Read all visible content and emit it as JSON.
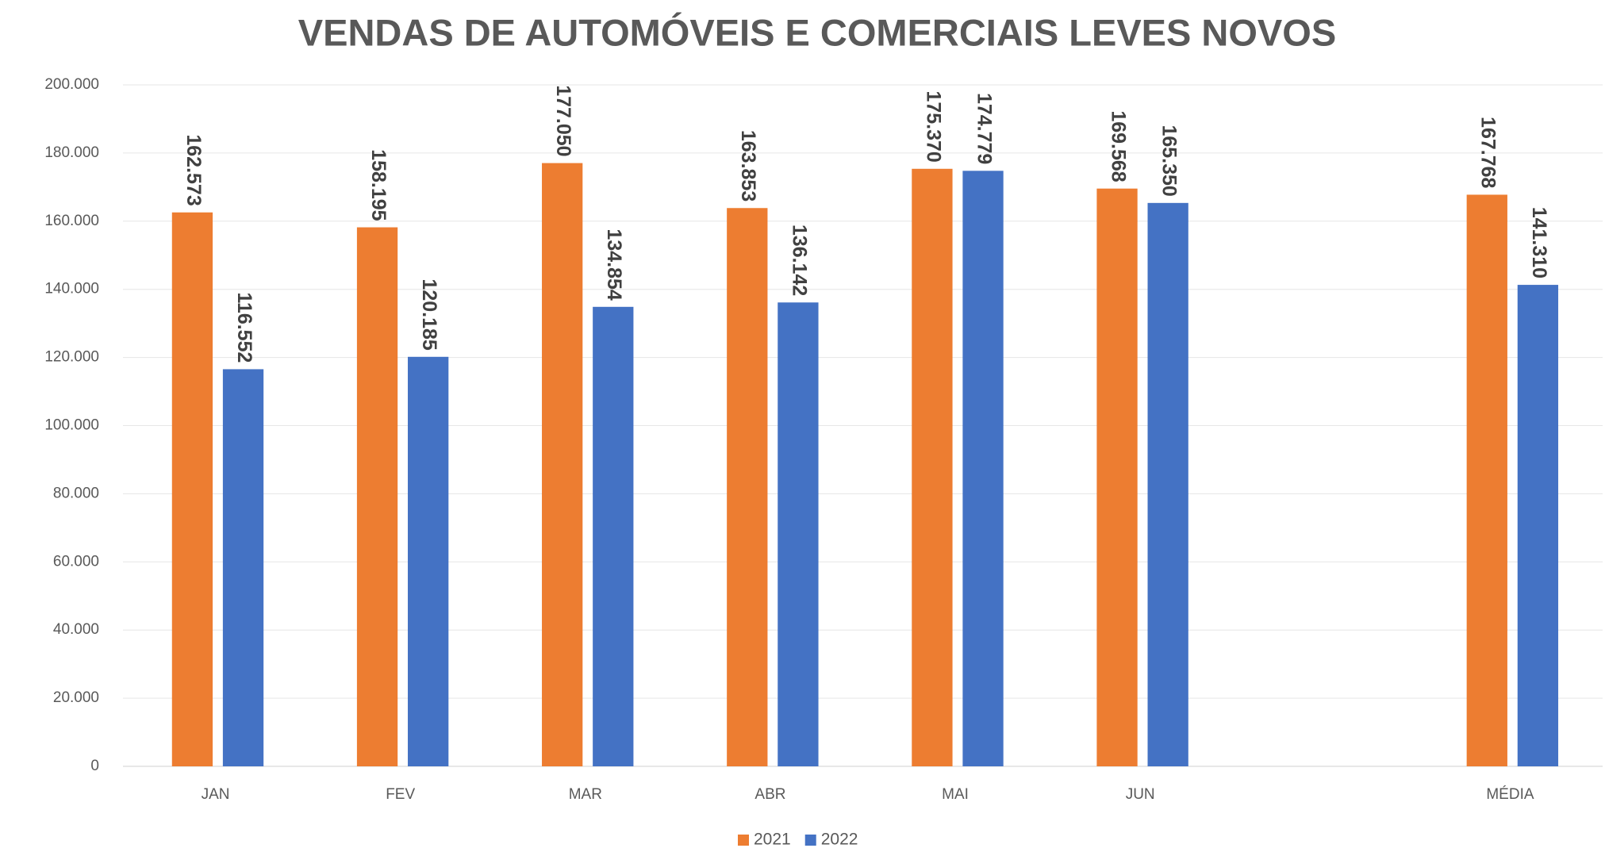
{
  "chart_data": {
    "type": "bar",
    "title": "VENDAS DE AUTOMÓVEIS E COMERCIAIS LEVES NOVOS",
    "categories": [
      "JAN",
      "FEV",
      "MAR",
      "ABR",
      "MAI",
      "JUN",
      null,
      "MÉDIA"
    ],
    "series": [
      {
        "name": "2021",
        "color": "#ed7d31",
        "values": [
          162573,
          158195,
          177050,
          163853,
          175370,
          169568,
          null,
          167768
        ],
        "value_labels": [
          "162.573",
          "158.195",
          "177.050",
          "163.853",
          "175.370",
          "169.568",
          null,
          "167.768"
        ]
      },
      {
        "name": "2022",
        "color": "#4472c4",
        "values": [
          116552,
          120185,
          134854,
          136142,
          174779,
          165350,
          null,
          141310
        ],
        "value_labels": [
          "116.552",
          "120.185",
          "134.854",
          "136.142",
          "174.779",
          "165.350",
          null,
          "141.310"
        ]
      }
    ],
    "ylim": [
      0,
      200000
    ],
    "yticks": [
      0,
      {
        "value": 20000,
        "label": "20.000"
      },
      {
        "value": 40000,
        "label": "40.000"
      },
      {
        "value": 60000,
        "label": "60.000"
      },
      {
        "value": 80000,
        "label": "80.000"
      },
      {
        "value": 100000,
        "label": "100.000"
      },
      {
        "value": 120000,
        "label": "120.000"
      },
      {
        "value": 140000,
        "label": "140.000"
      },
      {
        "value": 160000,
        "label": "160.000"
      },
      {
        "value": 180000,
        "label": "180.000"
      },
      {
        "value": 200000,
        "label": "200.000"
      }
    ],
    "grid": true,
    "legend": "bottom"
  }
}
